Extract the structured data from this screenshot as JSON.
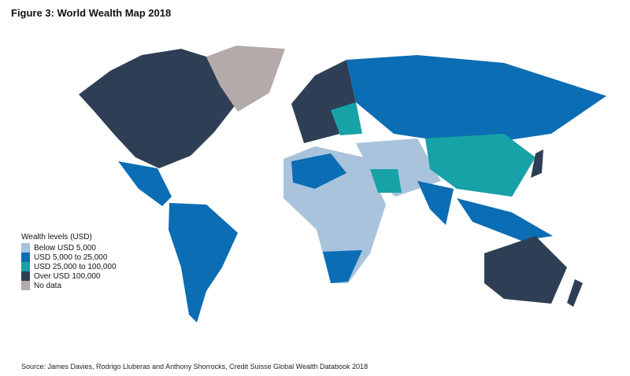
{
  "title": "Figure 3: World Wealth Map 2018",
  "legend": {
    "title": "Wealth levels (USD)",
    "items": [
      {
        "label": "Below USD 5,000",
        "color": "#a9c3dc"
      },
      {
        "label": "USD 5,000 to 25,000",
        "color": "#0b6db3"
      },
      {
        "label": "USD 25,000 to 100,000",
        "color": "#16a2a6"
      },
      {
        "label": "Over USD 100,000",
        "color": "#2e3f55"
      },
      {
        "label": "No data",
        "color": "#b3aaa9"
      }
    ]
  },
  "source": "Source: James Davies, Rodrigo Lluberas and Anthony Shorrocks, Credit Suisse Global Wealth Databook 2018"
}
